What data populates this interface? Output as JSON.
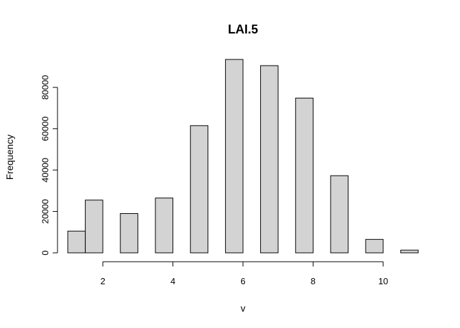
{
  "chart_data": {
    "type": "bar",
    "title": "LAI.5",
    "xlabel": "v",
    "ylabel": "Frequency",
    "xlim": [
      1,
      11
    ],
    "ylim": [
      0,
      93000
    ],
    "x_ticks": [
      2,
      4,
      6,
      8,
      10
    ],
    "y_ticks": [
      0,
      20000,
      40000,
      60000,
      80000
    ],
    "grid": false,
    "bar_color": "#d3d3d3",
    "bins": [
      {
        "start": 1.0,
        "end": 1.5,
        "value": 10500
      },
      {
        "start": 1.5,
        "end": 2.0,
        "value": 25500
      },
      {
        "start": 2.5,
        "end": 3.0,
        "value": 19000
      },
      {
        "start": 3.5,
        "end": 4.0,
        "value": 26500
      },
      {
        "start": 4.5,
        "end": 5.0,
        "value": 61500
      },
      {
        "start": 5.5,
        "end": 6.0,
        "value": 93500
      },
      {
        "start": 6.5,
        "end": 7.0,
        "value": 90500
      },
      {
        "start": 7.5,
        "end": 8.0,
        "value": 74800
      },
      {
        "start": 8.5,
        "end": 9.0,
        "value": 37300
      },
      {
        "start": 9.5,
        "end": 10.0,
        "value": 6500
      },
      {
        "start": 10.5,
        "end": 11.0,
        "value": 1300
      }
    ]
  }
}
